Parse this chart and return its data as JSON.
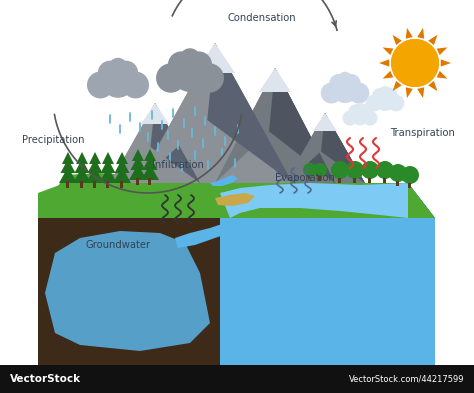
{
  "background_color": "#ffffff",
  "labels": {
    "condensation": "Condensation",
    "precipitation": "Precipitation",
    "transpiration": "Transpiration",
    "infiltration": "Infiltration",
    "evaporation": "Evaporation",
    "groundwater": "Groundwater",
    "vectorstock": "VectorStock",
    "vectorstock_url": "VectorStock.com/44217599"
  },
  "colors": {
    "mountain_gray": "#8c9198",
    "mountain_dark": "#5a6170",
    "mountain_mid": "#72797f",
    "snow": "#dde4ed",
    "grass_green": "#4ea832",
    "grass_dark": "#3a8a20",
    "water_blue": "#5ab4e8",
    "water_light": "#7dcbf5",
    "water_dark": "#3a8fc8",
    "soil_brown": "#6b4830",
    "soil_dark": "#3e2a18",
    "soil_mid": "#7a5538",
    "cloud_gray": "#9da5b0",
    "cloud_gray2": "#8a9198",
    "cloud_light": "#ccd8e8",
    "cloud_lighter": "#dde8f0",
    "rain_blue": "#6ab8d8",
    "sun_yellow": "#f5a500",
    "sun_orange": "#e07800",
    "tree_dark": "#1e6e1e",
    "tree_mid": "#2a8a2a",
    "sand_yellow": "#c8a84a",
    "transpiration_red": "#e03838",
    "arc_color": "#555555",
    "text_color": "#334455",
    "footer_bg": "#111111",
    "footer_text": "#ffffff"
  }
}
